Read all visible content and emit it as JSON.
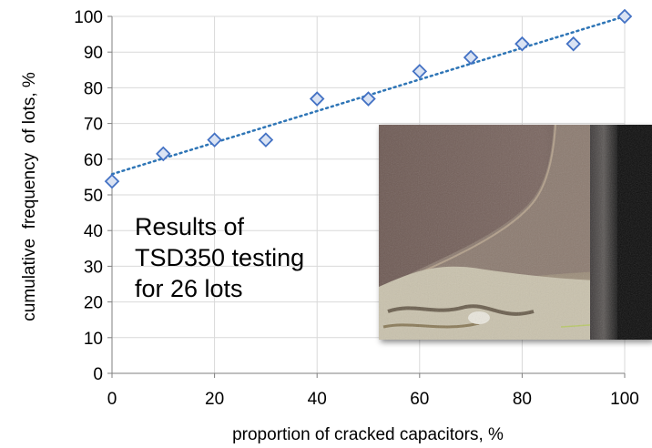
{
  "chart_data": {
    "type": "scatter",
    "title": "",
    "xlabel": "proportion of cracked capacitors, %",
    "ylabel": "cumulative  frequency  of lots, %",
    "xlim": [
      0,
      100
    ],
    "ylim": [
      0,
      100
    ],
    "xticks": [
      0,
      20,
      40,
      60,
      80,
      100
    ],
    "yticks": [
      0,
      10,
      20,
      30,
      40,
      50,
      60,
      70,
      80,
      90,
      100
    ],
    "grid": true,
    "series": [
      {
        "marker": "diamond",
        "color": "#4472c4",
        "x": [
          0,
          10,
          20,
          30,
          40,
          50,
          60,
          70,
          80,
          90,
          100
        ],
        "y": [
          53.8,
          61.5,
          65.4,
          65.4,
          76.9,
          76.9,
          84.6,
          88.5,
          92.3,
          92.3,
          100
        ]
      }
    ],
    "trendline": {
      "style": "dotted",
      "color": "#2e75b6",
      "y_at_x0": 55.8,
      "y_at_x100": 100
    },
    "annotation_lines": [
      "Results of",
      "TSD350 testing",
      "for 26 lots"
    ]
  },
  "photo": {
    "description_icon": "capacitor-crack-photo"
  }
}
